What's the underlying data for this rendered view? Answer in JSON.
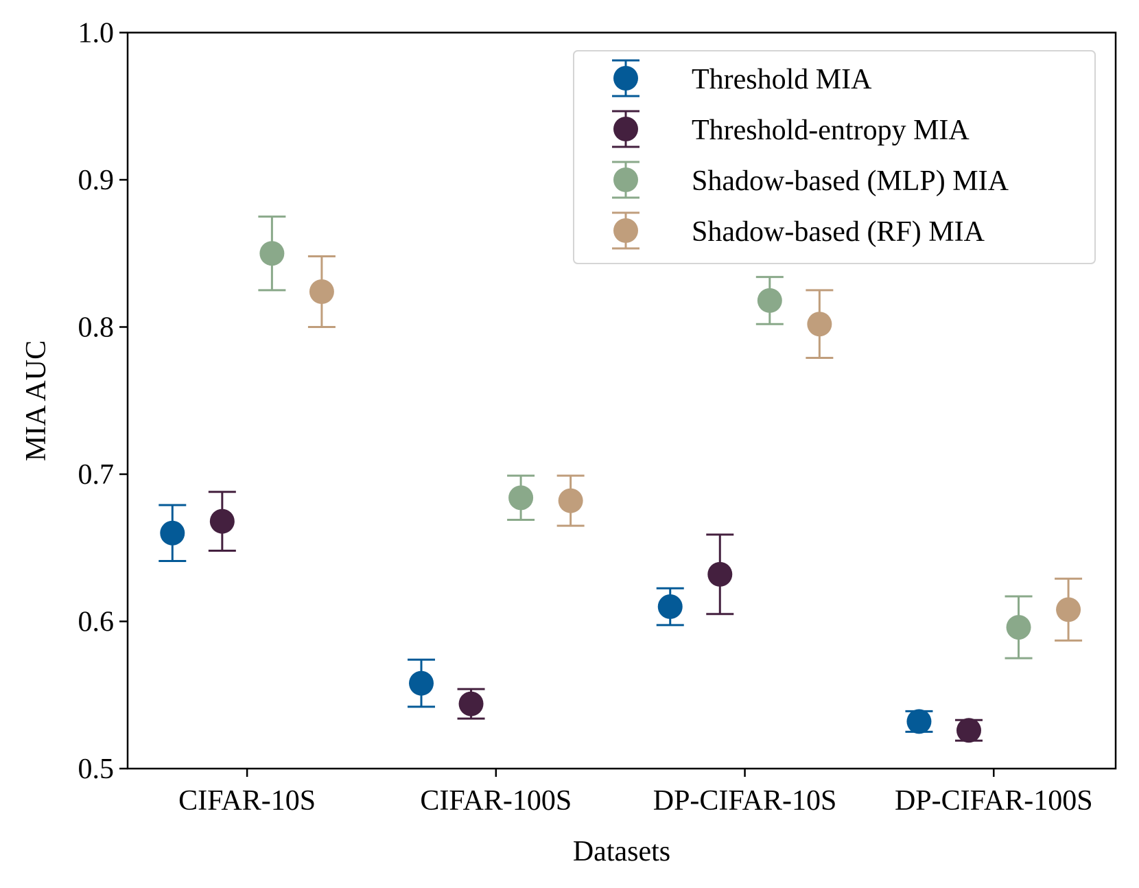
{
  "chart_data": {
    "type": "scatter",
    "title": "",
    "xlabel": "Datasets",
    "ylabel": "MIA AUC",
    "categories": [
      "CIFAR-10S",
      "CIFAR-100S",
      "DP-CIFAR-10S",
      "DP-CIFAR-100S"
    ],
    "ylim": [
      0.5,
      1.0
    ],
    "yticks": [
      "0.5",
      "0.6",
      "0.7",
      "0.8",
      "0.9",
      "1.0"
    ],
    "grid": false,
    "legend_position": "top-right",
    "series": [
      {
        "name": "Threshold MIA",
        "color": "#045a97",
        "offset": -0.3,
        "values": [
          0.66,
          0.558,
          0.61,
          0.532
        ],
        "errors": [
          0.019,
          0.016,
          0.0125,
          0.007
        ]
      },
      {
        "name": "Threshold-entropy MIA",
        "color": "#44203f",
        "offset": -0.1,
        "values": [
          0.668,
          0.544,
          0.632,
          0.526
        ],
        "errors": [
          0.02,
          0.01,
          0.027,
          0.007
        ]
      },
      {
        "name": "Shadow-based (MLP) MIA",
        "color": "#8aa98a",
        "offset": 0.1,
        "values": [
          0.85,
          0.684,
          0.818,
          0.596
        ],
        "errors": [
          0.025,
          0.015,
          0.016,
          0.021
        ]
      },
      {
        "name": "Shadow-based (RF) MIA",
        "color": "#c09e7c",
        "offset": 0.3,
        "values": [
          0.824,
          0.682,
          0.802,
          0.608
        ],
        "errors": [
          0.024,
          0.017,
          0.023,
          0.021
        ]
      }
    ]
  }
}
